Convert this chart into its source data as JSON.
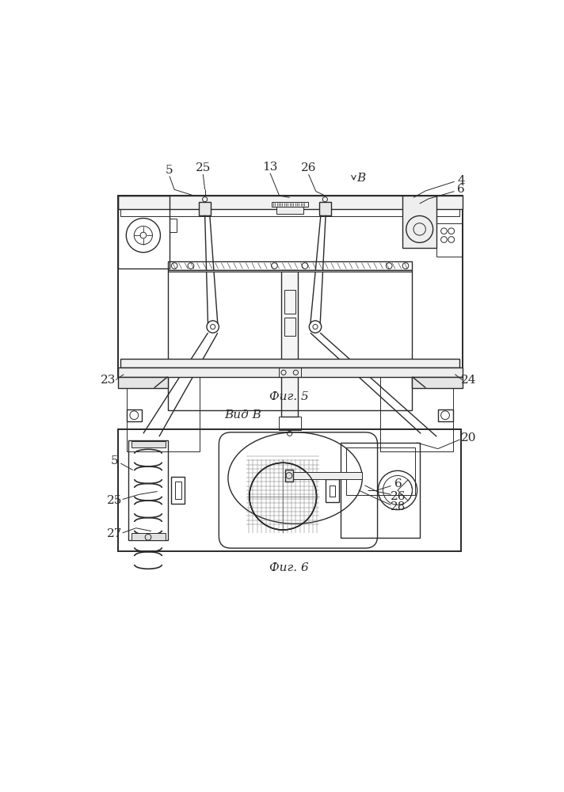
{
  "bg_color": "#ffffff",
  "line_color": "#2a2a2a",
  "fig5_label": "Фиг. 5",
  "fig6_label": "Фиг. 6",
  "vid_label": "Вид В"
}
